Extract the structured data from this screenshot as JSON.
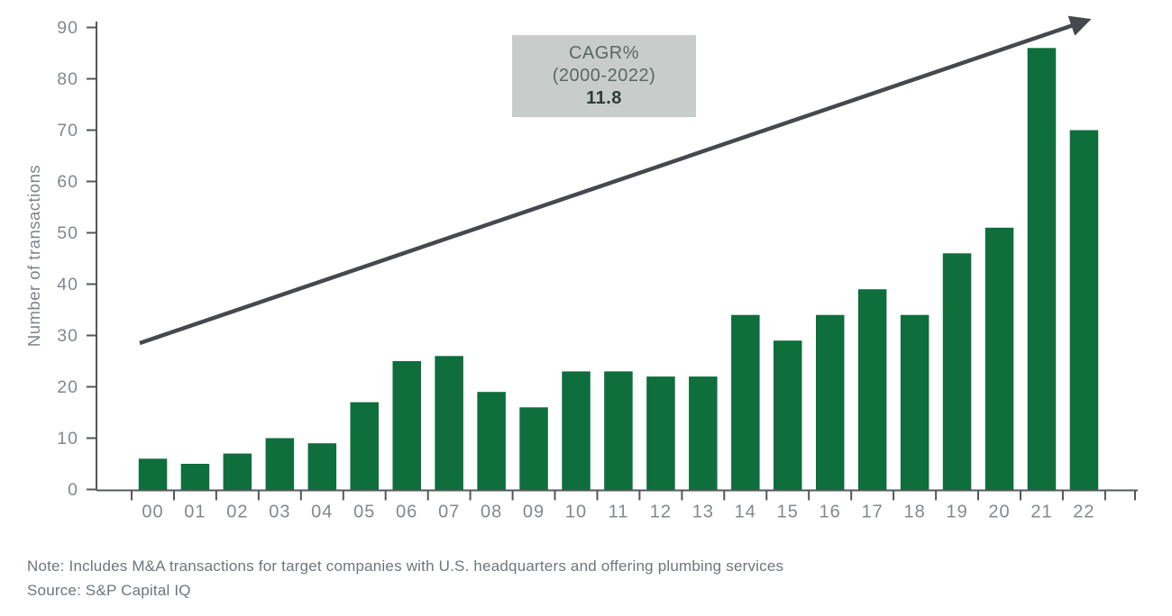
{
  "chart_data": {
    "type": "bar",
    "title": "",
    "xlabel": "",
    "ylabel": "Number of transactions",
    "categories": [
      "00",
      "01",
      "02",
      "03",
      "04",
      "05",
      "06",
      "07",
      "08",
      "09",
      "10",
      "11",
      "12",
      "13",
      "14",
      "15",
      "16",
      "17",
      "18",
      "19",
      "20",
      "21",
      "22"
    ],
    "values": [
      6,
      5,
      7,
      10,
      9,
      17,
      25,
      26,
      19,
      16,
      23,
      23,
      22,
      22,
      34,
      29,
      34,
      39,
      34,
      46,
      51,
      86,
      70
    ],
    "yticks": [
      0,
      10,
      20,
      30,
      40,
      50,
      60,
      70,
      80,
      90
    ],
    "ylim": [
      0,
      90
    ],
    "grid": false,
    "legend": "none",
    "annotations": [
      "upward trend arrow from year 00 to year 22"
    ]
  },
  "annotation_box": {
    "line1": "CAGR%",
    "line2": "(2000-2022)",
    "value": "11.8"
  },
  "footnotes": {
    "note": "Note: Includes M&A transactions for target companies with U.S. headquarters and offering plumbing services",
    "source": "Source: S&P Capital IQ"
  },
  "colors": {
    "bar": "#0e6e3c",
    "axis": "#53575b",
    "tick_label": "#84888b",
    "arrow": "#46484d",
    "annotation_box_bg": "#c8cdcb",
    "annotation_box_text": "#5c6664",
    "annotation_box_value": "#303b38"
  }
}
